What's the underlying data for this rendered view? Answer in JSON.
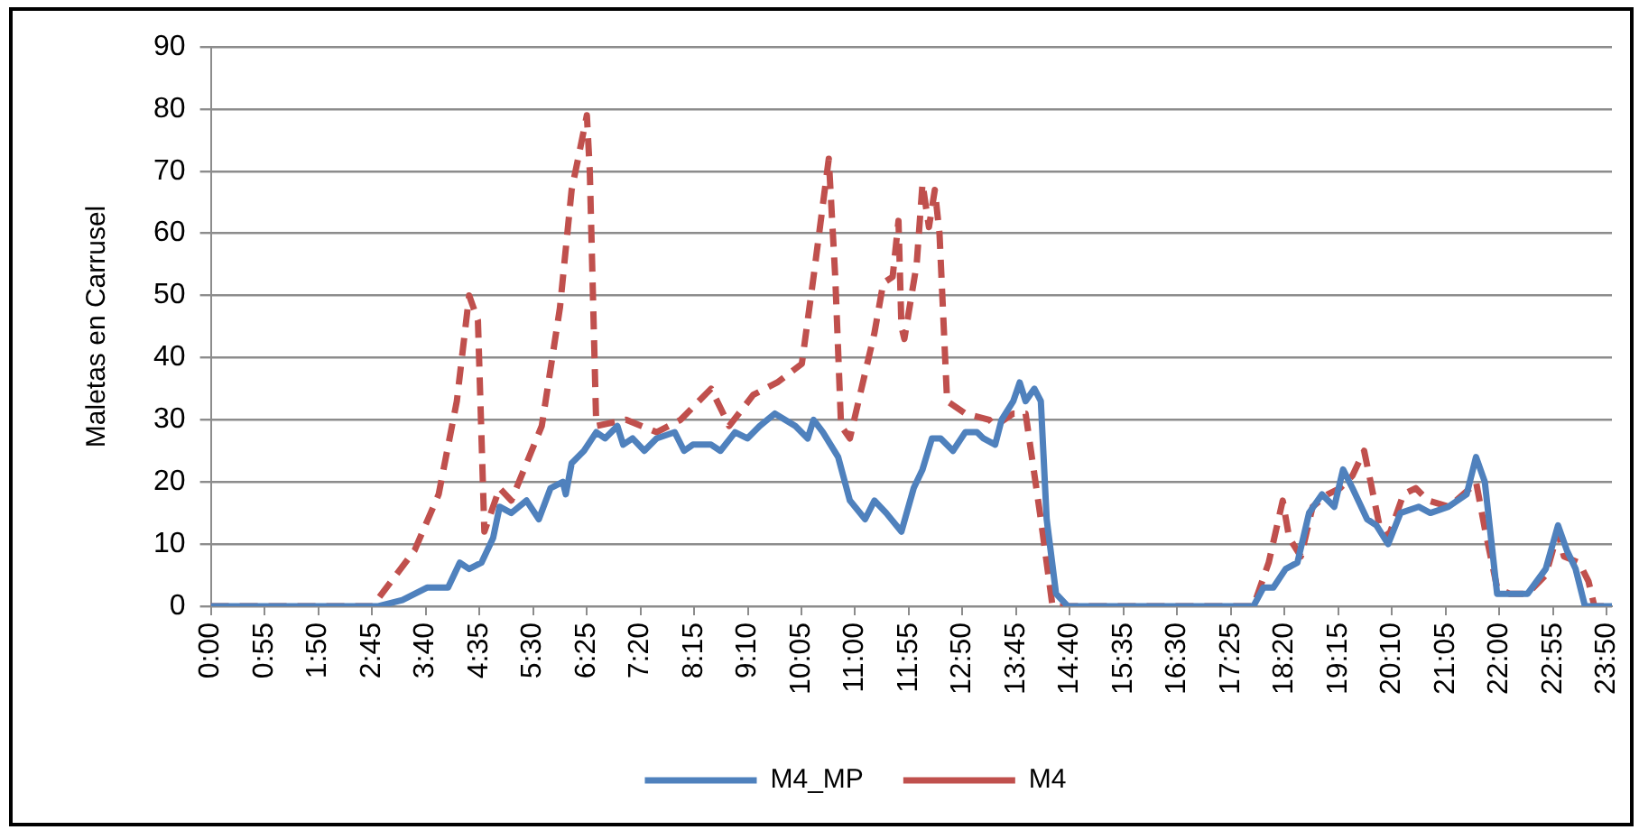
{
  "chart_data": {
    "type": "line",
    "ylabel": "Maletas en Carrusel",
    "xlim": [
      0,
      23.92
    ],
    "xticks": [
      {
        "value": 0,
        "label": "0:00"
      },
      {
        "value": 0.9167,
        "label": "0:55"
      },
      {
        "value": 1.8333,
        "label": "1:50"
      },
      {
        "value": 2.75,
        "label": "2:45"
      },
      {
        "value": 3.6667,
        "label": "3:40"
      },
      {
        "value": 4.5833,
        "label": "4:35"
      },
      {
        "value": 5.5,
        "label": "5:30"
      },
      {
        "value": 6.4167,
        "label": "6:25"
      },
      {
        "value": 7.3333,
        "label": "7:20"
      },
      {
        "value": 8.25,
        "label": "8:15"
      },
      {
        "value": 9.1667,
        "label": "9:10"
      },
      {
        "value": 10.0833,
        "label": "10:05"
      },
      {
        "value": 11,
        "label": "11:00"
      },
      {
        "value": 11.9167,
        "label": "11:55"
      },
      {
        "value": 12.8333,
        "label": "12:50"
      },
      {
        "value": 13.75,
        "label": "13:45"
      },
      {
        "value": 14.6667,
        "label": "14:40"
      },
      {
        "value": 15.5833,
        "label": "15:35"
      },
      {
        "value": 16.5,
        "label": "16:30"
      },
      {
        "value": 17.4167,
        "label": "17:25"
      },
      {
        "value": 18.3333,
        "label": "18:20"
      },
      {
        "value": 19.25,
        "label": "19:15"
      },
      {
        "value": 20.1667,
        "label": "20:10"
      },
      {
        "value": 21.0833,
        "label": "21:05"
      },
      {
        "value": 22,
        "label": "22:00"
      },
      {
        "value": 22.9167,
        "label": "22:55"
      },
      {
        "value": 23.8333,
        "label": "23:50"
      }
    ],
    "ylim": [
      0,
      90
    ],
    "yticks": [
      0,
      10,
      20,
      30,
      40,
      50,
      60,
      70,
      80,
      90
    ],
    "grid": "y",
    "legend": "bottom",
    "marker": "none",
    "series": [
      {
        "name": "M4_MP",
        "color": "#4f81bd",
        "line_style": "solid",
        "x": [
          0,
          2.86,
          3.27,
          3.69,
          4.05,
          4.25,
          4.41,
          4.62,
          4.82,
          4.93,
          5.13,
          5.39,
          5.6,
          5.8,
          6.01,
          6.06,
          6.16,
          6.37,
          6.58,
          6.73,
          6.94,
          7.04,
          7.2,
          7.4,
          7.61,
          7.92,
          8.08,
          8.23,
          8.54,
          8.7,
          8.95,
          9.16,
          9.37,
          9.63,
          9.98,
          10.19,
          10.29,
          10.45,
          10.71,
          10.91,
          11.17,
          11.33,
          11.53,
          11.79,
          12,
          12.15,
          12.31,
          12.46,
          12.67,
          12.88,
          13.08,
          13.19,
          13.39,
          13.5,
          13.7,
          13.81,
          13.91,
          14.06,
          14.17,
          14.27,
          14.43,
          14.63,
          17.8,
          17.97,
          18.14,
          18.35,
          18.55,
          18.75,
          18.97,
          19.18,
          19.33,
          19.49,
          19.74,
          19.9,
          20.1,
          20.31,
          20.62,
          20.82,
          21.13,
          21.44,
          21.6,
          21.75,
          21.96,
          22.17,
          22.48,
          22.79,
          23,
          23.15,
          23.3,
          23.46,
          23.92
        ],
        "values": [
          0,
          0,
          1,
          3,
          3,
          7,
          6,
          7,
          11,
          16,
          15,
          17,
          14,
          19,
          20,
          18,
          23,
          25,
          28,
          27,
          29,
          26,
          27,
          25,
          27,
          28,
          25,
          26,
          26,
          25,
          28,
          27,
          29,
          31,
          29,
          27,
          30,
          28,
          24,
          17,
          14,
          17,
          15,
          12,
          19,
          22,
          27,
          27,
          25,
          28,
          28,
          27,
          26,
          30,
          33,
          36,
          33,
          35,
          33,
          14,
          2,
          0,
          0,
          3,
          3,
          6,
          7,
          15,
          18,
          16,
          22,
          19,
          14,
          13,
          10,
          15,
          16,
          15,
          16,
          18,
          24,
          20,
          2,
          2,
          2,
          6,
          13,
          9,
          6,
          0,
          0
        ]
      },
      {
        "name": "M4",
        "color": "#c0504d",
        "line_style": "dashed",
        "x": [
          0,
          2.76,
          3.48,
          3.89,
          4.2,
          4.41,
          4.56,
          4.67,
          4.93,
          5.13,
          5.65,
          5.96,
          6.16,
          6.27,
          6.42,
          6.47,
          6.58,
          7.09,
          7.61,
          8.02,
          8.54,
          8.85,
          9.26,
          9.67,
          10.09,
          10.29,
          10.55,
          10.66,
          10.76,
          10.91,
          11.33,
          11.48,
          11.64,
          11.74,
          11.79,
          11.84,
          12.05,
          12.15,
          12.26,
          12.36,
          12.44,
          12.57,
          12.88,
          13.29,
          13.39,
          13.7,
          13.91,
          14.17,
          14.37,
          17.8,
          18.06,
          18.3,
          18.41,
          18.61,
          18.81,
          19.07,
          19.28,
          19.49,
          19.69,
          19.8,
          19.95,
          20.1,
          20.36,
          20.57,
          20.78,
          21.14,
          21.5,
          21.6,
          21.76,
          21.96,
          22.17,
          22.48,
          22.79,
          23,
          23.1,
          23.36,
          23.52,
          23.62,
          23.92
        ],
        "values": [
          0,
          0,
          9,
          18,
          33,
          50,
          46,
          12,
          19,
          17,
          29,
          48,
          67,
          72,
          79,
          70,
          29,
          30,
          28,
          30,
          35,
          29,
          34,
          36,
          39,
          53,
          72,
          53,
          29,
          27,
          44,
          52,
          53,
          62,
          45,
          43,
          55,
          68,
          61,
          67,
          60,
          33,
          31,
          30,
          29,
          31,
          31,
          14,
          0,
          0,
          7,
          17,
          11,
          8,
          16,
          18,
          19,
          21,
          25,
          20,
          13,
          11,
          18,
          19,
          17,
          16,
          19,
          20,
          12,
          3,
          2,
          2,
          5,
          12,
          8,
          7,
          4,
          0,
          0
        ]
      }
    ]
  }
}
